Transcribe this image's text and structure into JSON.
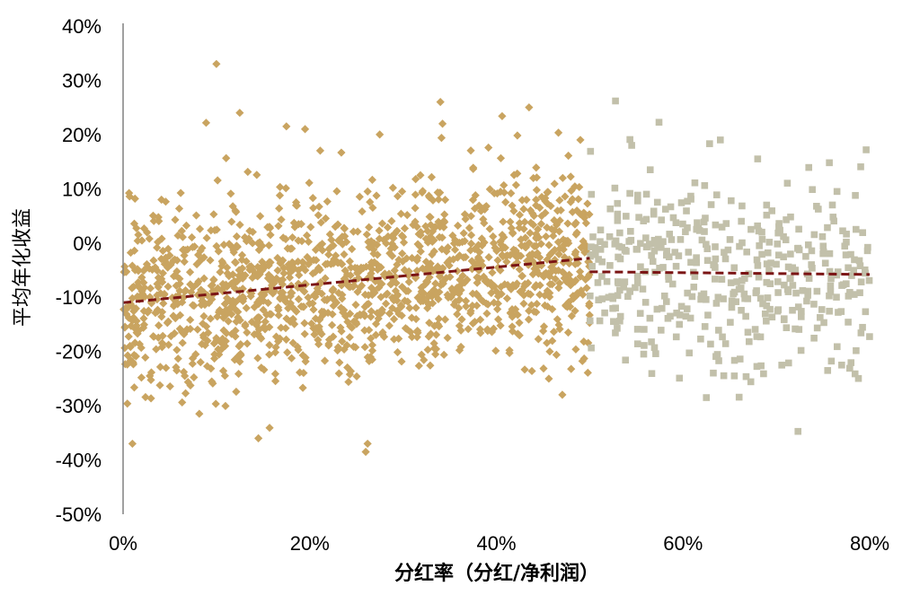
{
  "chart_data": {
    "type": "scatter",
    "xlabel": "分红率（分红/净利润）",
    "ylabel": "平均年化收益",
    "xlim": [
      0,
      0.8
    ],
    "ylim": [
      -0.5,
      0.4
    ],
    "x_ticks": [
      "0%",
      "20%",
      "40%",
      "60%",
      "80%"
    ],
    "y_ticks": [
      "40%",
      "30%",
      "20%",
      "10%",
      "0%",
      "-10%",
      "-20%",
      "-30%",
      "-40%",
      "-50%"
    ],
    "grid": false,
    "legend": "none",
    "series": [
      {
        "marker": "diamond",
        "color": "#c9a460",
        "x_range": [
          0,
          0.5
        ],
        "approx_count": 1500,
        "trend": {
          "x": [
            0,
            0.5
          ],
          "y": [
            -0.11,
            -0.028
          ]
        },
        "notable_points": [
          {
            "x": 0.1,
            "y": 0.33
          },
          {
            "x": 0.125,
            "y": 0.24
          },
          {
            "x": 0.34,
            "y": 0.26
          },
          {
            "x": 0.435,
            "y": 0.25
          },
          {
            "x": 0.175,
            "y": 0.215
          },
          {
            "x": 0.195,
            "y": 0.21
          },
          {
            "x": 0.26,
            "y": -0.385
          },
          {
            "x": 0.262,
            "y": -0.37
          },
          {
            "x": 0.01,
            "y": -0.37
          },
          {
            "x": 0.145,
            "y": -0.36
          },
          {
            "x": 0.49,
            "y": 0.19
          },
          {
            "x": 0.275,
            "y": 0.2
          }
        ]
      },
      {
        "marker": "square",
        "color": "#c2c0aa",
        "x_range": [
          0.5,
          0.8
        ],
        "approx_count": 420,
        "trend": {
          "x": [
            0.5,
            0.8
          ],
          "y": [
            -0.053,
            -0.058
          ]
        },
        "notable_points": [
          {
            "x": 0.64,
            "y": 0.19
          },
          {
            "x": 0.545,
            "y": 0.18
          },
          {
            "x": 0.68,
            "y": 0.155
          },
          {
            "x": 0.625,
            "y": -0.285
          },
          {
            "x": 0.655,
            "y": -0.245
          },
          {
            "x": 0.765,
            "y": 0.095
          },
          {
            "x": 0.77,
            "y": -0.225
          },
          {
            "x": 0.755,
            "y": -0.235
          }
        ]
      }
    ],
    "trendline_color": "#7b1515"
  }
}
